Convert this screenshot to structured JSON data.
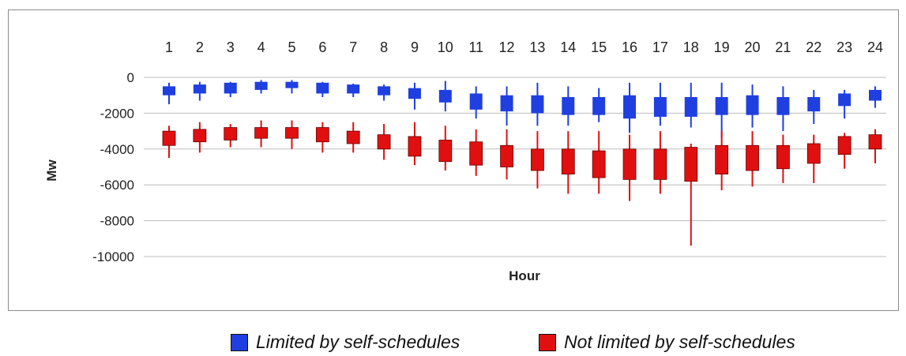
{
  "chart_data": {
    "type": "candlestick-box",
    "xlabel": "Hour",
    "ylabel": "Mw",
    "ylim": [
      -10000,
      0
    ],
    "yticks": [
      0,
      -2000,
      -4000,
      -6000,
      -8000,
      -10000
    ],
    "categories": [
      "1",
      "2",
      "3",
      "4",
      "5",
      "6",
      "7",
      "8",
      "9",
      "10",
      "11",
      "12",
      "13",
      "14",
      "15",
      "16",
      "17",
      "18",
      "19",
      "20",
      "21",
      "22",
      "23",
      "24"
    ],
    "grid": "horizontal",
    "legend_position": "bottom",
    "series": [
      {
        "name": "Limited by self-schedules",
        "color": "#1f3fe0",
        "high": [
          -300,
          -250,
          -250,
          -150,
          -150,
          -250,
          -350,
          -400,
          -300,
          -200,
          -500,
          -500,
          -300,
          -500,
          -600,
          -300,
          -300,
          -300,
          -300,
          -400,
          -500,
          -700,
          -700,
          -500
        ],
        "q3": [
          -500,
          -400,
          -300,
          -250,
          -250,
          -300,
          -400,
          -500,
          -600,
          -700,
          -900,
          -1000,
          -1000,
          -1100,
          -1100,
          -1000,
          -1100,
          -1100,
          -1100,
          -1000,
          -1100,
          -1100,
          -900,
          -700
        ],
        "q1": [
          -1000,
          -900,
          -900,
          -700,
          -600,
          -900,
          -900,
          -1000,
          -1200,
          -1400,
          -1800,
          -1900,
          -2000,
          -2100,
          -2100,
          -2300,
          -2200,
          -2200,
          -2100,
          -2100,
          -2100,
          -1900,
          -1600,
          -1300
        ],
        "low": [
          -1500,
          -1300,
          -1100,
          -900,
          -900,
          -1100,
          -1100,
          -1300,
          -1800,
          -1900,
          -2300,
          -2700,
          -2700,
          -2700,
          -2500,
          -3100,
          -2700,
          -2800,
          -3400,
          -2800,
          -3000,
          -2600,
          -2300,
          -1700
        ]
      },
      {
        "name": "Not limited by self-schedules",
        "color": "#e01010",
        "high": [
          -2700,
          -2500,
          -2600,
          -2400,
          -2400,
          -2500,
          -2500,
          -2600,
          -2500,
          -2700,
          -2900,
          -2900,
          -3000,
          -3000,
          -3000,
          -3200,
          -3000,
          -3700,
          -3000,
          -3000,
          -3200,
          -3200,
          -3100,
          -2900
        ],
        "q3": [
          -3000,
          -2900,
          -2800,
          -2800,
          -2800,
          -2800,
          -3000,
          -3200,
          -3300,
          -3500,
          -3600,
          -3800,
          -4000,
          -4000,
          -4100,
          -4000,
          -4000,
          -3900,
          -3800,
          -3800,
          -3800,
          -3700,
          -3300,
          -3200
        ],
        "q1": [
          -3800,
          -3600,
          -3500,
          -3400,
          -3400,
          -3600,
          -3700,
          -4000,
          -4400,
          -4700,
          -4900,
          -5000,
          -5200,
          -5400,
          -5600,
          -5700,
          -5700,
          -5800,
          -5400,
          -5200,
          -5100,
          -4800,
          -4300,
          -4000
        ],
        "low": [
          -4500,
          -4200,
          -3900,
          -3900,
          -4000,
          -4200,
          -4200,
          -4600,
          -4900,
          -5200,
          -5500,
          -5700,
          -6200,
          -6500,
          -6500,
          -6900,
          -6500,
          -9400,
          -6300,
          -6100,
          -5900,
          -5900,
          -5100,
          -4800
        ]
      }
    ]
  }
}
